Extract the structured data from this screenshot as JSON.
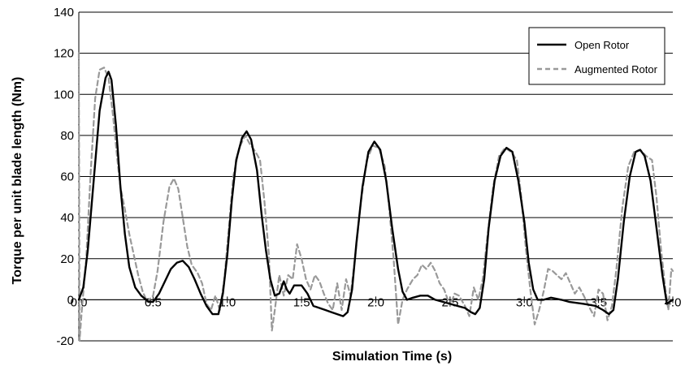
{
  "chart_data": {
    "type": "line",
    "title": "",
    "xlabel": "Simulation Time (s)",
    "ylabel": "Torque per unit blade length (Nm)",
    "xlim": [
      0.0,
      4.0
    ],
    "ylim": [
      -20,
      140
    ],
    "xticks": [
      0.0,
      0.5,
      1.0,
      1.5,
      2.0,
      2.5,
      3.0,
      3.5,
      4.0
    ],
    "xtick_labels": [
      "0.0",
      "0.5",
      "1.0",
      "1.5",
      "2.0",
      "2.5",
      "3.0",
      "3.5",
      "4.0"
    ],
    "yticks": [
      -20,
      0,
      20,
      40,
      60,
      80,
      100,
      120,
      140
    ],
    "ytick_labels": [
      "-20",
      "0",
      "20",
      "40",
      "60",
      "80",
      "100",
      "120",
      "140"
    ],
    "grid": "horizontal",
    "legend_position": "top-right",
    "series": [
      {
        "name": "Open Rotor",
        "color": "#000000",
        "dash": "solid",
        "points": [
          [
            0.0,
            0
          ],
          [
            0.03,
            6
          ],
          [
            0.06,
            24
          ],
          [
            0.1,
            58
          ],
          [
            0.14,
            92
          ],
          [
            0.18,
            108
          ],
          [
            0.2,
            111
          ],
          [
            0.22,
            107
          ],
          [
            0.25,
            85
          ],
          [
            0.28,
            55
          ],
          [
            0.31,
            32
          ],
          [
            0.34,
            16
          ],
          [
            0.38,
            6
          ],
          [
            0.42,
            2
          ],
          [
            0.47,
            -1
          ],
          [
            0.5,
            -1
          ],
          [
            0.54,
            3
          ],
          [
            0.58,
            9
          ],
          [
            0.62,
            15
          ],
          [
            0.66,
            18
          ],
          [
            0.7,
            19
          ],
          [
            0.74,
            16
          ],
          [
            0.78,
            10
          ],
          [
            0.82,
            3
          ],
          [
            0.86,
            -3
          ],
          [
            0.9,
            -7
          ],
          [
            0.94,
            -7
          ],
          [
            0.97,
            3
          ],
          [
            1.0,
            22
          ],
          [
            1.03,
            48
          ],
          [
            1.06,
            68
          ],
          [
            1.1,
            79
          ],
          [
            1.13,
            82
          ],
          [
            1.16,
            78
          ],
          [
            1.2,
            63
          ],
          [
            1.23,
            42
          ],
          [
            1.26,
            24
          ],
          [
            1.29,
            10
          ],
          [
            1.32,
            2
          ],
          [
            1.35,
            3
          ],
          [
            1.38,
            9
          ],
          [
            1.4,
            5
          ],
          [
            1.42,
            3
          ],
          [
            1.45,
            7
          ],
          [
            1.5,
            7
          ],
          [
            1.54,
            3
          ],
          [
            1.58,
            -3
          ],
          [
            1.62,
            -4
          ],
          [
            1.66,
            -5
          ],
          [
            1.7,
            -6
          ],
          [
            1.74,
            -7
          ],
          [
            1.78,
            -8
          ],
          [
            1.81,
            -6
          ],
          [
            1.84,
            5
          ],
          [
            1.87,
            28
          ],
          [
            1.91,
            55
          ],
          [
            1.95,
            72
          ],
          [
            1.99,
            77
          ],
          [
            2.03,
            73
          ],
          [
            2.07,
            58
          ],
          [
            2.11,
            35
          ],
          [
            2.15,
            15
          ],
          [
            2.18,
            4
          ],
          [
            2.21,
            0
          ],
          [
            2.25,
            1
          ],
          [
            2.3,
            2
          ],
          [
            2.35,
            2
          ],
          [
            2.4,
            0
          ],
          [
            2.45,
            -1
          ],
          [
            2.5,
            -2
          ],
          [
            2.55,
            -3
          ],
          [
            2.6,
            -4
          ],
          [
            2.64,
            -6
          ],
          [
            2.67,
            -7
          ],
          [
            2.7,
            -4
          ],
          [
            2.73,
            10
          ],
          [
            2.76,
            35
          ],
          [
            2.8,
            58
          ],
          [
            2.84,
            70
          ],
          [
            2.88,
            74
          ],
          [
            2.92,
            72
          ],
          [
            2.96,
            58
          ],
          [
            3.0,
            38
          ],
          [
            3.03,
            18
          ],
          [
            3.06,
            5
          ],
          [
            3.09,
            0
          ],
          [
            3.13,
            0
          ],
          [
            3.18,
            1
          ],
          [
            3.25,
            0
          ],
          [
            3.3,
            -1
          ],
          [
            3.4,
            -2
          ],
          [
            3.48,
            -3
          ],
          [
            3.53,
            -5
          ],
          [
            3.57,
            -7
          ],
          [
            3.6,
            -5
          ],
          [
            3.63,
            10
          ],
          [
            3.67,
            38
          ],
          [
            3.71,
            60
          ],
          [
            3.75,
            72
          ],
          [
            3.78,
            73
          ],
          [
            3.81,
            70
          ],
          [
            3.85,
            58
          ],
          [
            3.89,
            35
          ],
          [
            3.93,
            12
          ],
          [
            3.96,
            -2
          ],
          [
            3.98,
            -1
          ],
          [
            4.0,
            0
          ]
        ]
      },
      {
        "name": "Augmented Rotor",
        "color": "#999999",
        "dash": "dashed",
        "points": [
          [
            0.0,
            120
          ],
          [
            0.005,
            -20
          ],
          [
            0.02,
            -5
          ],
          [
            0.05,
            20
          ],
          [
            0.08,
            62
          ],
          [
            0.11,
            98
          ],
          [
            0.14,
            112
          ],
          [
            0.17,
            113
          ],
          [
            0.2,
            108
          ],
          [
            0.23,
            90
          ],
          [
            0.26,
            68
          ],
          [
            0.28,
            55
          ],
          [
            0.31,
            44
          ],
          [
            0.34,
            32
          ],
          [
            0.37,
            22
          ],
          [
            0.4,
            12
          ],
          [
            0.43,
            4
          ],
          [
            0.46,
            -1
          ],
          [
            0.5,
            2
          ],
          [
            0.53,
            14
          ],
          [
            0.57,
            38
          ],
          [
            0.61,
            55
          ],
          [
            0.64,
            59
          ],
          [
            0.67,
            54
          ],
          [
            0.7,
            40
          ],
          [
            0.73,
            26
          ],
          [
            0.76,
            17
          ],
          [
            0.8,
            13
          ],
          [
            0.83,
            8
          ],
          [
            0.86,
            -2
          ],
          [
            0.89,
            -5
          ],
          [
            0.92,
            2
          ],
          [
            0.95,
            -5
          ],
          [
            0.98,
            10
          ],
          [
            1.01,
            35
          ],
          [
            1.04,
            60
          ],
          [
            1.08,
            74
          ],
          [
            1.12,
            80
          ],
          [
            1.15,
            76
          ],
          [
            1.19,
            72
          ],
          [
            1.22,
            68
          ],
          [
            1.25,
            48
          ],
          [
            1.28,
            22
          ],
          [
            1.3,
            -15
          ],
          [
            1.32,
            -5
          ],
          [
            1.35,
            12
          ],
          [
            1.38,
            2
          ],
          [
            1.41,
            12
          ],
          [
            1.44,
            10
          ],
          [
            1.47,
            27
          ],
          [
            1.5,
            20
          ],
          [
            1.53,
            10
          ],
          [
            1.56,
            5
          ],
          [
            1.59,
            12
          ],
          [
            1.62,
            9
          ],
          [
            1.65,
            3
          ],
          [
            1.68,
            -2
          ],
          [
            1.71,
            -5
          ],
          [
            1.74,
            8
          ],
          [
            1.77,
            -5
          ],
          [
            1.8,
            10
          ],
          [
            1.83,
            2
          ],
          [
            1.86,
            20
          ],
          [
            1.9,
            48
          ],
          [
            1.94,
            68
          ],
          [
            1.98,
            75
          ],
          [
            2.02,
            74
          ],
          [
            2.06,
            65
          ],
          [
            2.09,
            45
          ],
          [
            2.12,
            20
          ],
          [
            2.15,
            -12
          ],
          [
            2.18,
            0
          ],
          [
            2.21,
            5
          ],
          [
            2.25,
            10
          ],
          [
            2.28,
            12
          ],
          [
            2.31,
            17
          ],
          [
            2.34,
            15
          ],
          [
            2.37,
            18
          ],
          [
            2.4,
            14
          ],
          [
            2.43,
            8
          ],
          [
            2.46,
            5
          ],
          [
            2.5,
            -3
          ],
          [
            2.53,
            3
          ],
          [
            2.56,
            2
          ],
          [
            2.6,
            -3
          ],
          [
            2.63,
            -8
          ],
          [
            2.66,
            6
          ],
          [
            2.69,
            0
          ],
          [
            2.72,
            10
          ],
          [
            2.75,
            30
          ],
          [
            2.79,
            55
          ],
          [
            2.83,
            70
          ],
          [
            2.87,
            74
          ],
          [
            2.91,
            72
          ],
          [
            2.95,
            68
          ],
          [
            2.98,
            50
          ],
          [
            3.01,
            25
          ],
          [
            3.04,
            5
          ],
          [
            3.07,
            -12
          ],
          [
            3.1,
            -5
          ],
          [
            3.13,
            4
          ],
          [
            3.16,
            15
          ],
          [
            3.19,
            14
          ],
          [
            3.22,
            12
          ],
          [
            3.25,
            10
          ],
          [
            3.28,
            13
          ],
          [
            3.31,
            8
          ],
          [
            3.34,
            3
          ],
          [
            3.37,
            6
          ],
          [
            3.4,
            2
          ],
          [
            3.44,
            -4
          ],
          [
            3.47,
            -8
          ],
          [
            3.5,
            5
          ],
          [
            3.53,
            3
          ],
          [
            3.56,
            -10
          ],
          [
            3.59,
            -3
          ],
          [
            3.62,
            15
          ],
          [
            3.66,
            45
          ],
          [
            3.7,
            65
          ],
          [
            3.74,
            72
          ],
          [
            3.78,
            73
          ],
          [
            3.82,
            70
          ],
          [
            3.86,
            68
          ],
          [
            3.89,
            50
          ],
          [
            3.92,
            25
          ],
          [
            3.95,
            5
          ],
          [
            3.97,
            -5
          ],
          [
            3.99,
            15
          ],
          [
            4.0,
            14
          ]
        ]
      }
    ]
  }
}
